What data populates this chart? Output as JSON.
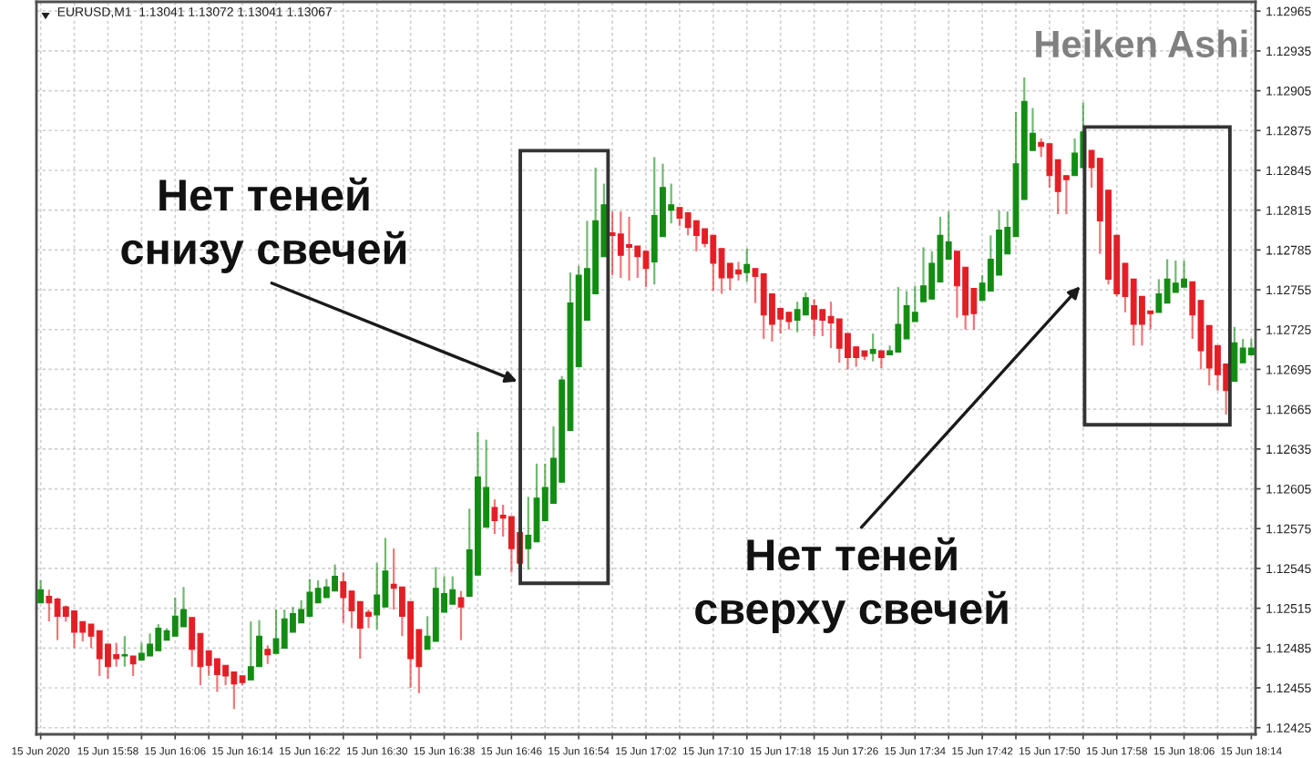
{
  "chart_data": {
    "type": "candlestick",
    "title": "Heiken Ashi",
    "subtitle": "EURUSD,M1  1.13041 1.13072 1.13041 1.13067",
    "x": [
      "2020-06-15T15:50",
      "2020-06-15T15:51",
      "2020-06-15T15:52",
      "2020-06-15T15:53",
      "2020-06-15T15:54",
      "2020-06-15T15:55",
      "2020-06-15T15:56",
      "2020-06-15T15:57",
      "2020-06-15T15:58",
      "2020-06-15T15:59",
      "2020-06-15T16:00",
      "2020-06-15T16:01",
      "2020-06-15T16:02",
      "2020-06-15T16:03",
      "2020-06-15T16:04",
      "2020-06-15T16:05",
      "2020-06-15T16:06",
      "2020-06-15T16:07",
      "2020-06-15T16:08",
      "2020-06-15T16:09",
      "2020-06-15T16:10",
      "2020-06-15T16:11",
      "2020-06-15T16:12",
      "2020-06-15T16:13",
      "2020-06-15T16:14",
      "2020-06-15T16:15",
      "2020-06-15T16:16",
      "2020-06-15T16:17",
      "2020-06-15T16:18",
      "2020-06-15T16:19",
      "2020-06-15T16:20",
      "2020-06-15T16:21",
      "2020-06-15T16:22",
      "2020-06-15T16:23",
      "2020-06-15T16:24",
      "2020-06-15T16:25",
      "2020-06-15T16:26",
      "2020-06-15T16:27",
      "2020-06-15T16:28",
      "2020-06-15T16:29",
      "2020-06-15T16:30",
      "2020-06-15T16:31",
      "2020-06-15T16:32",
      "2020-06-15T16:33",
      "2020-06-15T16:34",
      "2020-06-15T16:35",
      "2020-06-15T16:36",
      "2020-06-15T16:37",
      "2020-06-15T16:38",
      "2020-06-15T16:39",
      "2020-06-15T16:40",
      "2020-06-15T16:41",
      "2020-06-15T16:42",
      "2020-06-15T16:43",
      "2020-06-15T16:44",
      "2020-06-15T16:45",
      "2020-06-15T16:46",
      "2020-06-15T16:47",
      "2020-06-15T16:48",
      "2020-06-15T16:49",
      "2020-06-15T16:50",
      "2020-06-15T16:51",
      "2020-06-15T16:52",
      "2020-06-15T16:53",
      "2020-06-15T16:54",
      "2020-06-15T16:55",
      "2020-06-15T16:56",
      "2020-06-15T16:57",
      "2020-06-15T16:58",
      "2020-06-15T16:59",
      "2020-06-15T17:00",
      "2020-06-15T17:01",
      "2020-06-15T17:02",
      "2020-06-15T17:03",
      "2020-06-15T17:04",
      "2020-06-15T17:05",
      "2020-06-15T17:06",
      "2020-06-15T17:07",
      "2020-06-15T17:08",
      "2020-06-15T17:09",
      "2020-06-15T17:10",
      "2020-06-15T17:11",
      "2020-06-15T17:12",
      "2020-06-15T17:13",
      "2020-06-15T17:14",
      "2020-06-15T17:15",
      "2020-06-15T17:16",
      "2020-06-15T17:17",
      "2020-06-15T17:18",
      "2020-06-15T17:19",
      "2020-06-15T17:20",
      "2020-06-15T17:21",
      "2020-06-15T17:22",
      "2020-06-15T17:23",
      "2020-06-15T17:24",
      "2020-06-15T17:25",
      "2020-06-15T17:26",
      "2020-06-15T17:27",
      "2020-06-15T17:28",
      "2020-06-15T17:29",
      "2020-06-15T17:30",
      "2020-06-15T17:31",
      "2020-06-15T17:32",
      "2020-06-15T17:33",
      "2020-06-15T17:34",
      "2020-06-15T17:35",
      "2020-06-15T17:36",
      "2020-06-15T17:37",
      "2020-06-15T17:38",
      "2020-06-15T17:39",
      "2020-06-15T17:40",
      "2020-06-15T17:41",
      "2020-06-15T17:42",
      "2020-06-15T17:43",
      "2020-06-15T17:44",
      "2020-06-15T17:45",
      "2020-06-15T17:46",
      "2020-06-15T17:47",
      "2020-06-15T17:48",
      "2020-06-15T17:49",
      "2020-06-15T17:50",
      "2020-06-15T17:51",
      "2020-06-15T17:52",
      "2020-06-15T17:53",
      "2020-06-15T17:54",
      "2020-06-15T17:55",
      "2020-06-15T17:56",
      "2020-06-15T17:57",
      "2020-06-15T17:58",
      "2020-06-15T17:59",
      "2020-06-15T18:00",
      "2020-06-15T18:01",
      "2020-06-15T18:02",
      "2020-06-15T18:03",
      "2020-06-15T18:04",
      "2020-06-15T18:05",
      "2020-06-15T18:06",
      "2020-06-15T18:07",
      "2020-06-15T18:08",
      "2020-06-15T18:09",
      "2020-06-15T18:10",
      "2020-06-15T18:11",
      "2020-06-15T18:12",
      "2020-06-15T18:13",
      "2020-06-15T18:14"
    ],
    "ohlc": [
      [
        1.12519,
        1.12536,
        1.12519,
        1.12529
      ],
      [
        1.12524,
        1.12529,
        1.12505,
        1.12519
      ],
      [
        1.12522,
        1.12523,
        1.12491,
        1.12509
      ],
      [
        1.12516,
        1.12517,
        1.12505,
        1.12509
      ],
      [
        1.12513,
        1.12513,
        1.12485,
        1.12497
      ],
      [
        1.12505,
        1.12505,
        1.1249,
        1.12497
      ],
      [
        1.12503,
        1.12503,
        1.12485,
        1.12494
      ],
      [
        1.12498,
        1.12498,
        1.12464,
        1.12477
      ],
      [
        1.12488,
        1.12488,
        1.12462,
        1.12471
      ],
      [
        1.1248,
        1.12489,
        1.12471,
        1.12477
      ],
      [
        1.12479,
        1.12494,
        1.12471,
        1.1248
      ],
      [
        1.12479,
        1.12479,
        1.12464,
        1.12473
      ],
      [
        1.12476,
        1.12489,
        1.12476,
        1.12481
      ],
      [
        1.12479,
        1.12496,
        1.12479,
        1.12488
      ],
      [
        1.12483,
        1.12503,
        1.12483,
        1.125
      ],
      [
        1.12491,
        1.125,
        1.12491,
        1.12498
      ],
      [
        1.12494,
        1.12523,
        1.12494,
        1.12509
      ],
      [
        1.12501,
        1.12531,
        1.12501,
        1.12514
      ],
      [
        1.12508,
        1.12508,
        1.12471,
        1.12484
      ],
      [
        1.12496,
        1.12496,
        1.12457,
        1.12471
      ],
      [
        1.12483,
        1.12483,
        1.12464,
        1.12472
      ],
      [
        1.12477,
        1.12477,
        1.12452,
        1.12465
      ],
      [
        1.12472,
        1.12472,
        1.12457,
        1.12464
      ],
      [
        1.12467,
        1.12467,
        1.12439,
        1.12458
      ],
      [
        1.12464,
        1.12464,
        1.12457,
        1.12459
      ],
      [
        1.12461,
        1.12505,
        1.12461,
        1.12471
      ],
      [
        1.12471,
        1.12506,
        1.12471,
        1.12494
      ],
      [
        1.12484,
        1.12487,
        1.12473,
        1.1248
      ],
      [
        1.12481,
        1.12514,
        1.12481,
        1.12492
      ],
      [
        1.12485,
        1.12514,
        1.12485,
        1.12507
      ],
      [
        1.12497,
        1.12516,
        1.12497,
        1.12511
      ],
      [
        1.12504,
        1.12521,
        1.12504,
        1.12514
      ],
      [
        1.12509,
        1.12537,
        1.12509,
        1.12527
      ],
      [
        1.12519,
        1.12536,
        1.12519,
        1.1253
      ],
      [
        1.12523,
        1.12537,
        1.12523,
        1.12531
      ],
      [
        1.12528,
        1.12548,
        1.12528,
        1.12539
      ],
      [
        1.12535,
        1.12542,
        1.12504,
        1.12523
      ],
      [
        1.12528,
        1.12528,
        1.125,
        1.12513
      ],
      [
        1.1252,
        1.1252,
        1.12477,
        1.125
      ],
      [
        1.12512,
        1.12514,
        1.125,
        1.12509
      ],
      [
        1.1251,
        1.12549,
        1.12499,
        1.12525
      ],
      [
        1.12516,
        1.12568,
        1.12516,
        1.12543
      ],
      [
        1.12533,
        1.1256,
        1.12514,
        1.1253
      ],
      [
        1.12531,
        1.12531,
        1.12494,
        1.12509
      ],
      [
        1.1252,
        1.1252,
        1.12455,
        1.12477
      ],
      [
        1.12499,
        1.12499,
        1.12451,
        1.12471
      ],
      [
        1.12484,
        1.12509,
        1.12484,
        1.12494
      ],
      [
        1.1249,
        1.12546,
        1.1249,
        1.1253
      ],
      [
        1.12512,
        1.12539,
        1.12512,
        1.12526
      ],
      [
        1.12518,
        1.12539,
        1.12518,
        1.12529
      ],
      [
        1.12523,
        1.12528,
        1.12491,
        1.12516
      ],
      [
        1.12524,
        1.1259,
        1.12524,
        1.12559
      ],
      [
        1.1254,
        1.12648,
        1.1254,
        1.12614
      ],
      [
        1.12576,
        1.12642,
        1.12576,
        1.12606
      ],
      [
        1.12591,
        1.12597,
        1.12571,
        1.12581
      ],
      [
        1.12585,
        1.12593,
        1.12569,
        1.12583
      ],
      [
        1.12584,
        1.12584,
        1.12542,
        1.1256
      ],
      [
        1.12572,
        1.12572,
        1.12544,
        1.12549
      ],
      [
        1.1256,
        1.12599,
        1.12544,
        1.1257
      ],
      [
        1.12565,
        1.12624,
        1.12565,
        1.12598
      ],
      [
        1.12581,
        1.12624,
        1.12581,
        1.12606
      ],
      [
        1.12594,
        1.12652,
        1.12594,
        1.12628
      ],
      [
        1.1261,
        1.1269,
        1.1261,
        1.12687
      ],
      [
        1.12649,
        1.12768,
        1.12649,
        1.12745
      ],
      [
        1.12697,
        1.12773,
        1.12697,
        1.12766
      ],
      [
        1.12732,
        1.12807,
        1.12732,
        1.12771
      ],
      [
        1.12752,
        1.12847,
        1.12752,
        1.12807
      ],
      [
        1.1278,
        1.12835,
        1.1278,
        1.12819
      ],
      [
        1.12798,
        1.12814,
        1.12766,
        1.12796
      ],
      [
        1.12797,
        1.12814,
        1.12764,
        1.12781
      ],
      [
        1.12789,
        1.1281,
        1.12762,
        1.12787
      ],
      [
        1.12788,
        1.12788,
        1.12764,
        1.1278
      ],
      [
        1.12784,
        1.12784,
        1.12757,
        1.12771
      ],
      [
        1.12776,
        1.12855,
        1.12759,
        1.12811
      ],
      [
        1.12795,
        1.1285,
        1.12795,
        1.12832
      ],
      [
        1.12815,
        1.12835,
        1.12805,
        1.12819
      ],
      [
        1.12817,
        1.12817,
        1.12803,
        1.12809
      ],
      [
        1.12813,
        1.12813,
        1.12796,
        1.12802
      ],
      [
        1.12807,
        1.12807,
        1.12784,
        1.12796
      ],
      [
        1.12801,
        1.12801,
        1.12787,
        1.1279
      ],
      [
        1.12796,
        1.12796,
        1.12754,
        1.12775
      ],
      [
        1.12786,
        1.12786,
        1.12752,
        1.12764
      ],
      [
        1.12775,
        1.12775,
        1.12755,
        1.12764
      ],
      [
        1.1277,
        1.12776,
        1.12762,
        1.12767
      ],
      [
        1.12768,
        1.12786,
        1.12761,
        1.12774
      ],
      [
        1.12771,
        1.12771,
        1.12745,
        1.12765
      ],
      [
        1.12767,
        1.12767,
        1.12718,
        1.12736
      ],
      [
        1.12752,
        1.12752,
        1.12716,
        1.12729
      ],
      [
        1.12741,
        1.12741,
        1.12722,
        1.12733
      ],
      [
        1.12738,
        1.12738,
        1.12725,
        1.12731
      ],
      [
        1.12732,
        1.12746,
        1.12723,
        1.1274
      ],
      [
        1.12736,
        1.12753,
        1.12736,
        1.12749
      ],
      [
        1.12743,
        1.12748,
        1.1272,
        1.12733
      ],
      [
        1.1274,
        1.1274,
        1.1272,
        1.12732
      ],
      [
        1.12735,
        1.12746,
        1.12711,
        1.1273
      ],
      [
        1.12733,
        1.12733,
        1.127,
        1.12711
      ],
      [
        1.12722,
        1.12722,
        1.12695,
        1.12704
      ],
      [
        1.12712,
        1.12712,
        1.12697,
        1.12704
      ],
      [
        1.12709,
        1.12709,
        1.12702,
        1.12705
      ],
      [
        1.12707,
        1.12722,
        1.12701,
        1.1271
      ],
      [
        1.12709,
        1.12709,
        1.12696,
        1.12704
      ],
      [
        1.12706,
        1.12713,
        1.12706,
        1.12709
      ],
      [
        1.12708,
        1.12757,
        1.12708,
        1.12729
      ],
      [
        1.12718,
        1.12754,
        1.12718,
        1.12743
      ],
      [
        1.12731,
        1.12758,
        1.12731,
        1.12738
      ],
      [
        1.12746,
        1.12787,
        1.12746,
        1.12758
      ],
      [
        1.12748,
        1.12784,
        1.12748,
        1.12775
      ],
      [
        1.12761,
        1.1281,
        1.12761,
        1.12796
      ],
      [
        1.12778,
        1.12814,
        1.12778,
        1.12791
      ],
      [
        1.12784,
        1.12784,
        1.12734,
        1.12758
      ],
      [
        1.12772,
        1.12772,
        1.12725,
        1.12736
      ],
      [
        1.12756,
        1.12756,
        1.12725,
        1.12737
      ],
      [
        1.12747,
        1.12766,
        1.12747,
        1.1276
      ],
      [
        1.12754,
        1.12796,
        1.12754,
        1.12778
      ],
      [
        1.12766,
        1.12815,
        1.12766,
        1.128
      ],
      [
        1.12782,
        1.12814,
        1.12782,
        1.12802
      ],
      [
        1.12795,
        1.12889,
        1.12795,
        1.1285
      ],
      [
        1.12823,
        1.12915,
        1.12823,
        1.12897
      ],
      [
        1.1286,
        1.12892,
        1.1286,
        1.12873
      ],
      [
        1.12866,
        1.12869,
        1.12855,
        1.12863
      ],
      [
        1.12865,
        1.12865,
        1.12832,
        1.12841
      ],
      [
        1.12853,
        1.12853,
        1.12812,
        1.12829
      ],
      [
        1.12841,
        1.12841,
        1.12812,
        1.12838
      ],
      [
        1.12841,
        1.12869,
        1.12841,
        1.12858
      ],
      [
        1.12847,
        1.12896,
        1.12847,
        1.12874
      ],
      [
        1.1286,
        1.1286,
        1.12832,
        1.12847
      ],
      [
        1.12854,
        1.12854,
        1.12782,
        1.12807
      ],
      [
        1.1283,
        1.1283,
        1.12759,
        1.12763
      ],
      [
        1.12796,
        1.12796,
        1.1275,
        1.12752
      ],
      [
        1.12775,
        1.12775,
        1.12738,
        1.1275
      ],
      [
        1.12763,
        1.12763,
        1.12713,
        1.12729
      ],
      [
        1.1275,
        1.1275,
        1.12713,
        1.12729
      ],
      [
        1.12739,
        1.12739,
        1.12725,
        1.12737
      ],
      [
        1.12738,
        1.12763,
        1.12738,
        1.12752
      ],
      [
        1.12745,
        1.12778,
        1.12745,
        1.12763
      ],
      [
        1.12753,
        1.12777,
        1.12753,
        1.1276
      ],
      [
        1.12757,
        1.12777,
        1.12757,
        1.12763
      ],
      [
        1.12761,
        1.12761,
        1.12718,
        1.12736
      ],
      [
        1.12747,
        1.12747,
        1.12695,
        1.12709
      ],
      [
        1.12728,
        1.12728,
        1.12683,
        1.12696
      ],
      [
        1.12713,
        1.12713,
        1.12679,
        1.12691
      ],
      [
        1.12699,
        1.12699,
        1.12661,
        1.12679
      ],
      [
        1.12686,
        1.12727,
        1.12686,
        1.12715
      ],
      [
        1.127,
        1.12718,
        1.127,
        1.12711
      ],
      [
        1.12706,
        1.12718,
        1.12706,
        1.12711
      ]
    ],
    "colors": [
      "#128c12",
      "#e41e25",
      "#e41e25",
      "#e41e25",
      "#e41e25",
      "#e41e25",
      "#e41e25",
      "#e41e25",
      "#e41e25",
      "#e41e25",
      "#128c12",
      "#e41e25",
      "#128c12",
      "#128c12",
      "#128c12",
      "#128c12",
      "#128c12",
      "#128c12",
      "#e41e25",
      "#e41e25",
      "#e41e25",
      "#e41e25",
      "#e41e25",
      "#e41e25",
      "#e41e25",
      "#128c12",
      "#128c12",
      "#e41e25",
      "#128c12",
      "#128c12",
      "#128c12",
      "#128c12",
      "#128c12",
      "#128c12",
      "#128c12",
      "#128c12",
      "#e41e25",
      "#e41e25",
      "#e41e25",
      "#e41e25",
      "#128c12",
      "#128c12",
      "#e41e25",
      "#e41e25",
      "#e41e25",
      "#e41e25",
      "#128c12",
      "#128c12",
      "#128c12",
      "#128c12",
      "#e41e25",
      "#128c12",
      "#128c12",
      "#128c12",
      "#e41e25",
      "#e41e25",
      "#e41e25",
      "#e41e25",
      "#128c12",
      "#128c12",
      "#128c12",
      "#128c12",
      "#128c12",
      "#128c12",
      "#128c12",
      "#128c12",
      "#128c12",
      "#128c12",
      "#e41e25",
      "#e41e25",
      "#e41e25",
      "#e41e25",
      "#e41e25",
      "#128c12",
      "#128c12",
      "#128c12",
      "#e41e25",
      "#e41e25",
      "#e41e25",
      "#e41e25",
      "#e41e25",
      "#e41e25",
      "#e41e25",
      "#e41e25",
      "#128c12",
      "#e41e25",
      "#e41e25",
      "#e41e25",
      "#e41e25",
      "#e41e25",
      "#128c12",
      "#128c12",
      "#e41e25",
      "#e41e25",
      "#e41e25",
      "#e41e25",
      "#e41e25",
      "#e41e25",
      "#e41e25",
      "#128c12",
      "#e41e25",
      "#128c12",
      "#128c12",
      "#128c12",
      "#128c12",
      "#128c12",
      "#128c12",
      "#128c12",
      "#128c12",
      "#e41e25",
      "#e41e25",
      "#e41e25",
      "#128c12",
      "#128c12",
      "#128c12",
      "#128c12",
      "#128c12",
      "#128c12",
      "#128c12",
      "#e41e25",
      "#e41e25",
      "#e41e25",
      "#e41e25",
      "#128c12",
      "#128c12",
      "#e41e25",
      "#e41e25",
      "#e41e25",
      "#e41e25",
      "#e41e25",
      "#e41e25",
      "#e41e25",
      "#e41e25",
      "#128c12",
      "#128c12",
      "#128c12",
      "#128c12",
      "#e41e25",
      "#e41e25",
      "#e41e25",
      "#e41e25",
      "#e41e25",
      "#128c12",
      "#128c12",
      "#128c12"
    ],
    "xlim": [
      "2020-06-15T15:49:30",
      "2020-06-15T18:14:30"
    ],
    "xticks": [
      {
        "value": "2020-06-15T15:50",
        "label": "15 Jun 2020"
      },
      {
        "value": "2020-06-15T15:54",
        "label": null
      },
      {
        "value": "2020-06-15T15:58",
        "label": "15 Jun 15:58"
      },
      {
        "value": "2020-06-15T16:02",
        "label": null
      },
      {
        "value": "2020-06-15T16:06",
        "label": "15 Jun 16:06"
      },
      {
        "value": "2020-06-15T16:10",
        "label": null
      },
      {
        "value": "2020-06-15T16:14",
        "label": "15 Jun 16:14"
      },
      {
        "value": "2020-06-15T16:18",
        "label": null
      },
      {
        "value": "2020-06-15T16:22",
        "label": "15 Jun 16:22"
      },
      {
        "value": "2020-06-15T16:26",
        "label": null
      },
      {
        "value": "2020-06-15T16:30",
        "label": "15 Jun 16:30"
      },
      {
        "value": "2020-06-15T16:34",
        "label": null
      },
      {
        "value": "2020-06-15T16:38",
        "label": "15 Jun 16:38"
      },
      {
        "value": "2020-06-15T16:42",
        "label": null
      },
      {
        "value": "2020-06-15T16:46",
        "label": "15 Jun 16:46"
      },
      {
        "value": "2020-06-15T16:50",
        "label": null
      },
      {
        "value": "2020-06-15T16:54",
        "label": "15 Jun 16:54"
      },
      {
        "value": "2020-06-15T16:58",
        "label": null
      },
      {
        "value": "2020-06-15T17:02",
        "label": "15 Jun 17:02"
      },
      {
        "value": "2020-06-15T17:06",
        "label": null
      },
      {
        "value": "2020-06-15T17:10",
        "label": "15 Jun 17:10"
      },
      {
        "value": "2020-06-15T17:14",
        "label": null
      },
      {
        "value": "2020-06-15T17:18",
        "label": "15 Jun 17:18"
      },
      {
        "value": "2020-06-15T17:22",
        "label": null
      },
      {
        "value": "2020-06-15T17:26",
        "label": "15 Jun 17:26"
      },
      {
        "value": "2020-06-15T17:30",
        "label": null
      },
      {
        "value": "2020-06-15T17:34",
        "label": "15 Jun 17:34"
      },
      {
        "value": "2020-06-15T17:38",
        "label": null
      },
      {
        "value": "2020-06-15T17:42",
        "label": "15 Jun 17:42"
      },
      {
        "value": "2020-06-15T17:46",
        "label": null
      },
      {
        "value": "2020-06-15T17:50",
        "label": "15 Jun 17:50"
      },
      {
        "value": "2020-06-15T17:54",
        "label": null
      },
      {
        "value": "2020-06-15T17:58",
        "label": "15 Jun 17:58"
      },
      {
        "value": "2020-06-15T18:02",
        "label": null
      },
      {
        "value": "2020-06-15T18:06",
        "label": "15 Jun 18:06"
      },
      {
        "value": "2020-06-15T18:10",
        "label": null
      },
      {
        "value": "2020-06-15T18:14",
        "label": "15 Jun 18:14"
      }
    ],
    "ylim": [
      1.1242,
      1.12972
    ],
    "yticks": [
      1.12425,
      1.12455,
      1.12485,
      1.12515,
      1.12545,
      1.12575,
      1.12605,
      1.12635,
      1.12665,
      1.12695,
      1.12725,
      1.12755,
      1.12785,
      1.12815,
      1.12845,
      1.12875,
      1.12905,
      1.12935,
      1.12965
    ],
    "grid": true,
    "annotations": [
      "Нет теней\nснизу свечей",
      "Нет теней\nсверху свечей"
    ]
  }
}
